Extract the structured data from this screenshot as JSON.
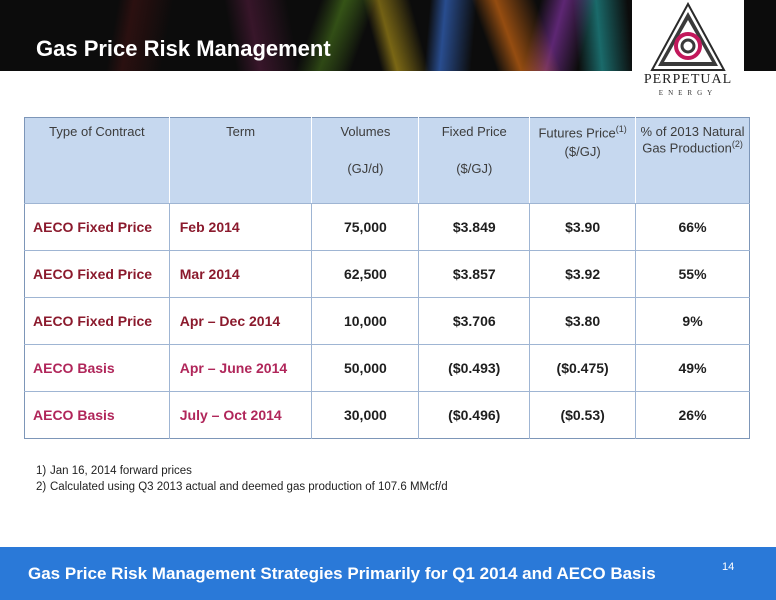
{
  "header": {
    "title": "Gas Price Risk Management"
  },
  "logo": {
    "name": "PERPETUAL",
    "sub": "ENERGY"
  },
  "table": {
    "headers": [
      {
        "label": "Type of Contract",
        "unit": ""
      },
      {
        "label": "Term",
        "unit": ""
      },
      {
        "label": "Volumes",
        "unit": "(GJ/d)"
      },
      {
        "label": "Fixed Price",
        "unit": "($/GJ)"
      },
      {
        "label": "Futures Price",
        "sup": "(1)",
        "unit": "($/GJ)"
      },
      {
        "label": "% of 2013 Natural Gas Production",
        "sup": "(2)",
        "unit": ""
      }
    ],
    "rows": [
      {
        "type": "AECO Fixed Price",
        "term": "Feb 2014",
        "volumes": "75,000",
        "fixed": "$3.849",
        "futures": "$3.90",
        "pct": "66%"
      },
      {
        "type": "AECO Fixed Price",
        "term": "Mar 2014",
        "volumes": "62,500",
        "fixed": "$3.857",
        "futures": "$3.92",
        "pct": "55%"
      },
      {
        "type": "AECO Fixed Price",
        "term": "Apr – Dec 2014",
        "volumes": "10,000",
        "fixed": "$3.706",
        "futures": "$3.80",
        "pct": "9%"
      },
      {
        "type": "AECO Basis",
        "term": "Apr – June 2014",
        "volumes": "50,000",
        "fixed": "($0.493)",
        "futures": "($0.475)",
        "pct": "49%"
      },
      {
        "type": "AECO Basis",
        "term": "July – Oct 2014",
        "volumes": "30,000",
        "fixed": "($0.496)",
        "futures": "($0.53)",
        "pct": "26%"
      }
    ]
  },
  "footnotes": [
    {
      "num": "1)",
      "text": "Jan 16, 2014 forward prices"
    },
    {
      "num": "2)",
      "text": "Calculated using Q3 2013 actual and deemed gas production of 107.6 MMcf/d"
    }
  ],
  "footer": {
    "text": "Gas Price Risk Management Strategies Primarily for Q1 2014 and AECO Basis",
    "page_number": "14"
  },
  "colors": {
    "header_bg": "#0c0c0c",
    "table_header_bg": "#c6d8ef",
    "fixed_label": "#8b1a2d",
    "basis_label": "#b0265a",
    "footer_bg": "#2a79d8"
  }
}
